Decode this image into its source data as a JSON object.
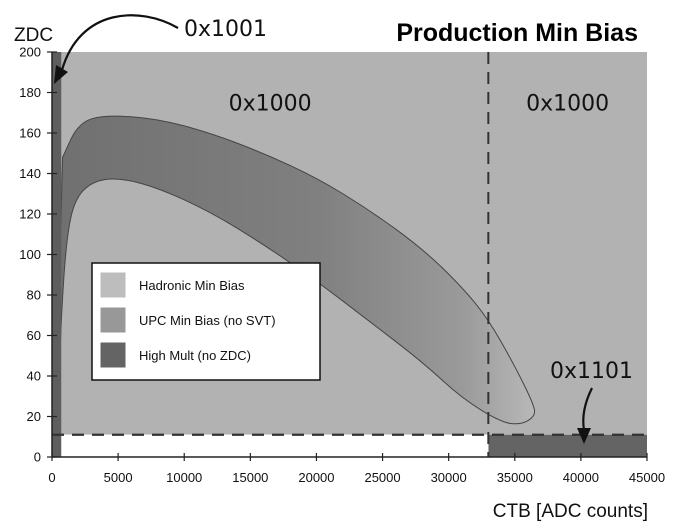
{
  "chart_data": {
    "type": "area",
    "title": "Production Min Bias",
    "xlabel": "CTB [ADC counts]",
    "ylabel": "ZDC",
    "xlim": [
      0,
      45000
    ],
    "ylim": [
      0,
      200
    ],
    "xticks": [
      0,
      5000,
      10000,
      15000,
      20000,
      25000,
      30000,
      35000,
      40000,
      45000
    ],
    "yticks": [
      0,
      20,
      40,
      60,
      80,
      100,
      120,
      140,
      160,
      180,
      200
    ],
    "grid": false,
    "legend_position": "center-left",
    "legend": [
      {
        "label": "Hadronic Min Bias",
        "color": "#bdbdbd"
      },
      {
        "label": "UPC Min Bias (no SVT)",
        "color": "#989898"
      },
      {
        "label": "High Mult (no ZDC)",
        "color": "#646464"
      }
    ],
    "regions": [
      {
        "name": "Hadronic Min Bias",
        "x_range": [
          0,
          45000
        ],
        "y_range": [
          11,
          200
        ],
        "color": "#b2b2b2"
      },
      {
        "name": "High Mult (no ZDC) band near x=0",
        "x_range": [
          0,
          600
        ],
        "y_range": [
          0,
          200
        ],
        "color": "#646464"
      },
      {
        "name": "High Mult (no ZDC) bottom-right",
        "x_range": [
          33000,
          45000
        ],
        "y_range": [
          0,
          11
        ],
        "color": "#646464"
      }
    ],
    "cut_lines": [
      {
        "orientation": "vertical",
        "x": 33000,
        "y_range": [
          0,
          200
        ],
        "style": "dashed"
      },
      {
        "orientation": "horizontal",
        "y": 11,
        "x_range": [
          0,
          45000
        ],
        "style": "dashed"
      }
    ],
    "band_outline": {
      "outer": [
        [
          800,
          148
        ],
        [
          2000,
          165
        ],
        [
          4000,
          169
        ],
        [
          8000,
          167
        ],
        [
          12000,
          160
        ],
        [
          16000,
          150
        ],
        [
          20000,
          138
        ],
        [
          24000,
          122
        ],
        [
          28000,
          103
        ],
        [
          31000,
          84
        ],
        [
          33000,
          68
        ],
        [
          35000,
          45
        ],
        [
          36500,
          25
        ],
        [
          36500,
          20
        ],
        [
          35500,
          16
        ],
        [
          34000,
          17
        ],
        [
          31000,
          29
        ],
        [
          28000,
          47
        ],
        [
          24000,
          67
        ],
        [
          20000,
          87
        ],
        [
          16000,
          105
        ],
        [
          12000,
          121
        ],
        [
          8000,
          133
        ],
        [
          5000,
          138
        ],
        [
          3000,
          136
        ],
        [
          1700,
          127
        ],
        [
          1100,
          108
        ],
        [
          700,
          70
        ],
        [
          500,
          30
        ],
        [
          300,
          10
        ],
        [
          200,
          5
        ]
      ],
      "fill": "#7d7d7d"
    },
    "annotations": [
      {
        "text": "0x1001",
        "points_to": [
          500,
          180
        ]
      },
      {
        "text": "0x1000",
        "at": [
          16500,
          175
        ]
      },
      {
        "text": "0x1000",
        "at": [
          39000,
          175
        ]
      },
      {
        "text": "0x1101",
        "points_to": [
          40000,
          9
        ]
      }
    ]
  }
}
